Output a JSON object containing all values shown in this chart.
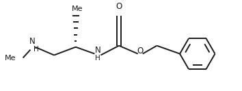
{
  "bg_color": "#ffffff",
  "line_color": "#1a1a1a",
  "line_width": 1.4,
  "font_size": 8.5,
  "figsize": [
    3.54,
    1.33
  ],
  "dpi": 100,
  "structure": {
    "me_label": "Me",
    "nh_label": "NH",
    "o_label": "O",
    "n_label": "N",
    "h_label": "H"
  }
}
